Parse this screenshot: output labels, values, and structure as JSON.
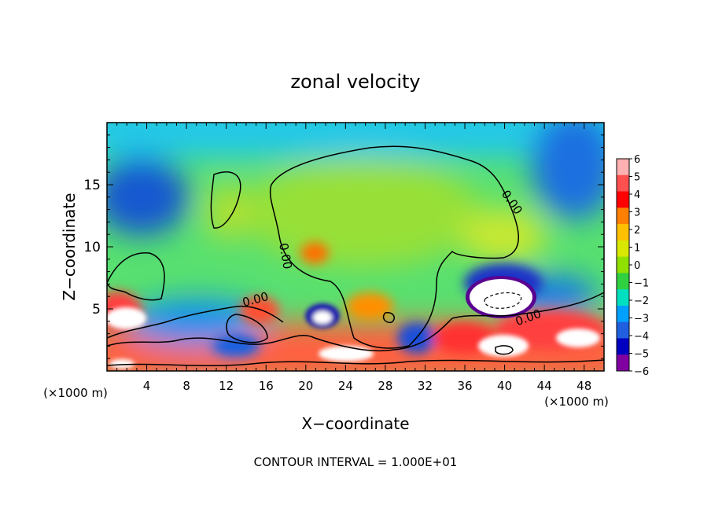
{
  "chart_data": {
    "type": "heatmap",
    "title": "zonal velocity",
    "xlabel": "X−coordinate",
    "ylabel": "Z−coordinate",
    "x_unit_left": "(×1000 m)",
    "x_unit_right": "(×1000 m)",
    "footer": "CONTOUR INTERVAL = 1.000E+01",
    "xlim": [
      0,
      50
    ],
    "ylim": [
      0,
      20
    ],
    "x_ticks": [
      "4",
      "8",
      "12",
      "16",
      "20",
      "24",
      "28",
      "32",
      "36",
      "40",
      "44",
      "48"
    ],
    "x_tick_values": [
      4,
      8,
      12,
      16,
      20,
      24,
      28,
      32,
      36,
      40,
      44,
      48
    ],
    "y_ticks": [
      "5",
      "10",
      "15"
    ],
    "y_tick_values": [
      5,
      10,
      15
    ],
    "zero_contour_label": "0.00",
    "colorbar": {
      "labels": [
        "6",
        "5",
        "4",
        "3",
        "2",
        "1",
        "0",
        "−1",
        "−2",
        "−3",
        "−4",
        "−5",
        "−6"
      ],
      "values": [
        6,
        5,
        4,
        3,
        2,
        1,
        0,
        -1,
        -2,
        -3,
        -4,
        -5,
        -6
      ],
      "colors": [
        "#ffb0b0",
        "#ff5050",
        "#ff0000",
        "#ff8000",
        "#ffc000",
        "#d8e800",
        "#90e000",
        "#30d040",
        "#00e0c0",
        "#00a0ff",
        "#2060e0",
        "#0000c0",
        "#8000a0"
      ]
    },
    "grid": false
  }
}
